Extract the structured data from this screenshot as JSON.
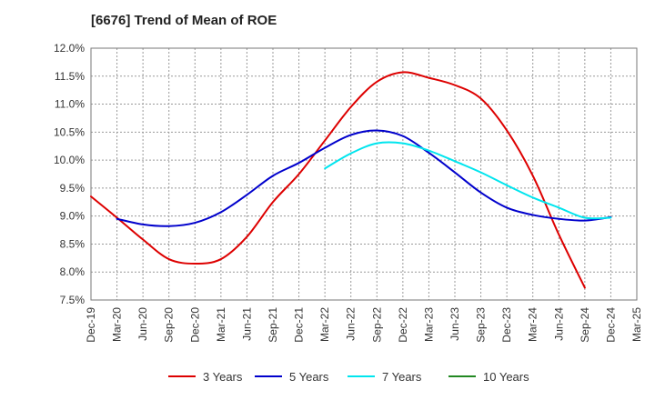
{
  "chart_data": {
    "type": "line",
    "title": "[6676]  Trend of Mean of ROE",
    "xlabel": "",
    "ylabel": "",
    "ylim": [
      7.5,
      12.0
    ],
    "y_ticks": [
      7.5,
      8.0,
      8.5,
      9.0,
      9.5,
      10.0,
      10.5,
      11.0,
      11.5,
      12.0
    ],
    "y_tick_labels": [
      "7.5%",
      "8.0%",
      "8.5%",
      "9.0%",
      "9.5%",
      "10.0%",
      "10.5%",
      "11.0%",
      "11.5%",
      "12.0%"
    ],
    "x_tick_labels": [
      "Dec-19",
      "Mar-20",
      "Jun-20",
      "Sep-20",
      "Dec-20",
      "Mar-21",
      "Jun-21",
      "Sep-21",
      "Dec-21",
      "Mar-22",
      "Jun-22",
      "Sep-22",
      "Dec-22",
      "Mar-23",
      "Jun-23",
      "Sep-23",
      "Dec-23",
      "Mar-24",
      "Jun-24",
      "Sep-24",
      "Dec-24",
      "Mar-25"
    ],
    "grid": true,
    "legend_position": "bottom",
    "series": [
      {
        "name": "3 Years",
        "color": "#dd0000",
        "start_index": 0,
        "values": [
          9.35,
          8.97,
          8.58,
          8.23,
          8.15,
          8.23,
          8.63,
          9.25,
          9.75,
          10.35,
          10.95,
          11.4,
          11.57,
          11.47,
          11.34,
          11.1,
          10.53,
          9.72,
          8.67,
          7.72
        ]
      },
      {
        "name": "5 Years",
        "color": "#0000cc",
        "start_index": 1,
        "values": [
          8.95,
          8.85,
          8.82,
          8.88,
          9.07,
          9.38,
          9.72,
          9.95,
          10.22,
          10.45,
          10.53,
          10.43,
          10.13,
          9.78,
          9.42,
          9.15,
          9.02,
          8.95,
          8.92,
          8.98
        ]
      },
      {
        "name": "7 Years",
        "color": "#00e5ee",
        "start_index": 9,
        "values": [
          9.85,
          10.12,
          10.3,
          10.3,
          10.17,
          9.98,
          9.78,
          9.55,
          9.33,
          9.15,
          8.97,
          8.97
        ]
      },
      {
        "name": "10 Years",
        "color": "#228822",
        "start_index": 0,
        "values": []
      }
    ]
  }
}
